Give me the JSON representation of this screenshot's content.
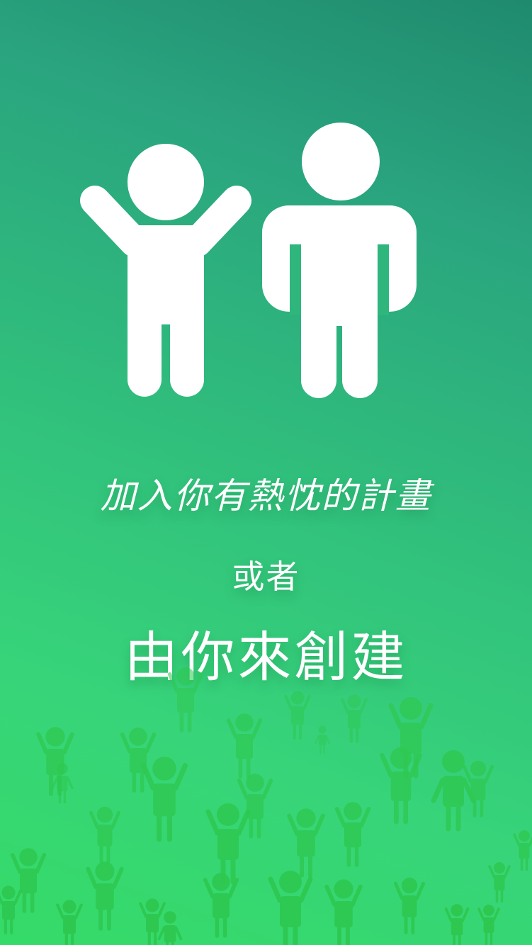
{
  "hero": {
    "icons": [
      "child-arms-up-icon",
      "adult-standing-icon"
    ],
    "figure_color": "#ffffff"
  },
  "text": {
    "line1": "加入你有熱忱的計畫",
    "line2": "或者",
    "line3": "由你來創建"
  },
  "crowd": {
    "icon": "crowd-people-icon",
    "color": "#2ec850"
  },
  "colors": {
    "gradient_top": "#1f8a6e",
    "gradient_bottom": "#35db68"
  }
}
